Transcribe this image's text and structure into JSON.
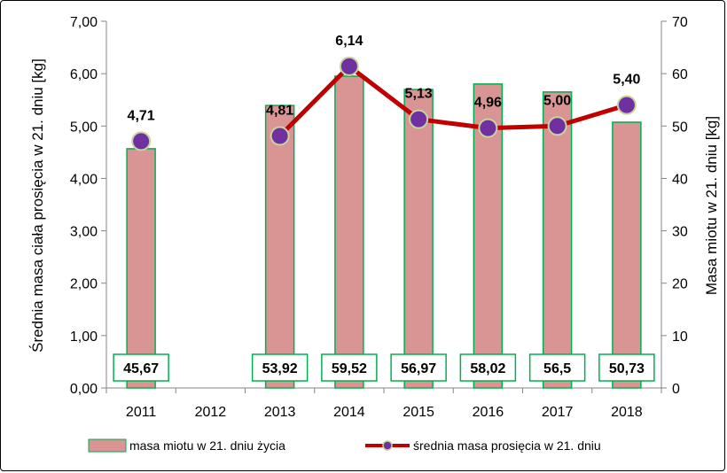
{
  "chart_data": {
    "type": "bar",
    "categories": [
      "2011",
      "2012",
      "2013",
      "2014",
      "2015",
      "2016",
      "2017",
      "2018"
    ],
    "series": [
      {
        "name": "masa miotu  w 21. dniu życia",
        "type": "bar",
        "axis": "right",
        "values": [
          45.67,
          null,
          53.92,
          59.52,
          56.97,
          58.02,
          56.5,
          50.73
        ],
        "labels": [
          "45,67",
          "",
          "53,92",
          "59,52",
          "56,97",
          "58,02",
          "56,5",
          "50,73"
        ],
        "color": "#d99594",
        "border_color": "#00b050"
      },
      {
        "name": "średnia masa prosięcia  w 21. dniu",
        "type": "line",
        "axis": "left",
        "values": [
          4.71,
          null,
          4.81,
          6.14,
          5.13,
          4.96,
          5.0,
          5.4
        ],
        "labels": [
          "4,71",
          "",
          "4,81",
          "6,14",
          "5,13",
          "4,96",
          "5,00",
          "5,40"
        ],
        "color": "#c00000",
        "marker_color": "#7030a0",
        "marker_border": "#c3d69b"
      }
    ],
    "y_left": {
      "label": "Średnia masa ciała prosięcia w 21. dniu [kg]",
      "ylim": [
        0,
        7
      ],
      "ticks": [
        "0,00",
        "1,00",
        "2,00",
        "3,00",
        "4,00",
        "5,00",
        "6,00",
        "7,00"
      ]
    },
    "y_right": {
      "label": "Masa miotu  w 21. dniu [kg]",
      "ylim": [
        0,
        70
      ],
      "ticks": [
        "0",
        "10",
        "20",
        "30",
        "40",
        "50",
        "60",
        "70"
      ]
    },
    "legend": {
      "position": "bottom"
    },
    "grid": false
  }
}
